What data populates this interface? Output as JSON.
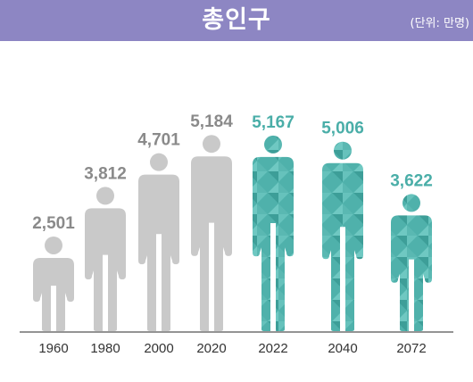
{
  "header": {
    "title": "총인구",
    "unit": "(단위: 만명)"
  },
  "colors": {
    "header_bg": "#8d86c3",
    "past_figure": "#c9c9c9",
    "past_label": "#8a8a8a",
    "projection_figure": "#4aaea8",
    "projection_label": "#4aaea8",
    "axis": "#555555"
  },
  "chart_data": {
    "type": "bar",
    "categories": [
      "1960",
      "1980",
      "2000",
      "2020",
      "2022",
      "2040",
      "2072"
    ],
    "values": [
      2501,
      3812,
      4701,
      5184,
      5167,
      5006,
      3622
    ],
    "value_labels": [
      "2,501",
      "3,812",
      "4,701",
      "5,184",
      "5,167",
      "5,006",
      "3,622"
    ],
    "projection": [
      false,
      false,
      false,
      false,
      true,
      true,
      true
    ],
    "mark_shape": "person-icon",
    "title": "총인구",
    "unit": "(단위: 만명)",
    "xlabel": "",
    "ylabel": "",
    "grid": false,
    "legend": "none"
  }
}
